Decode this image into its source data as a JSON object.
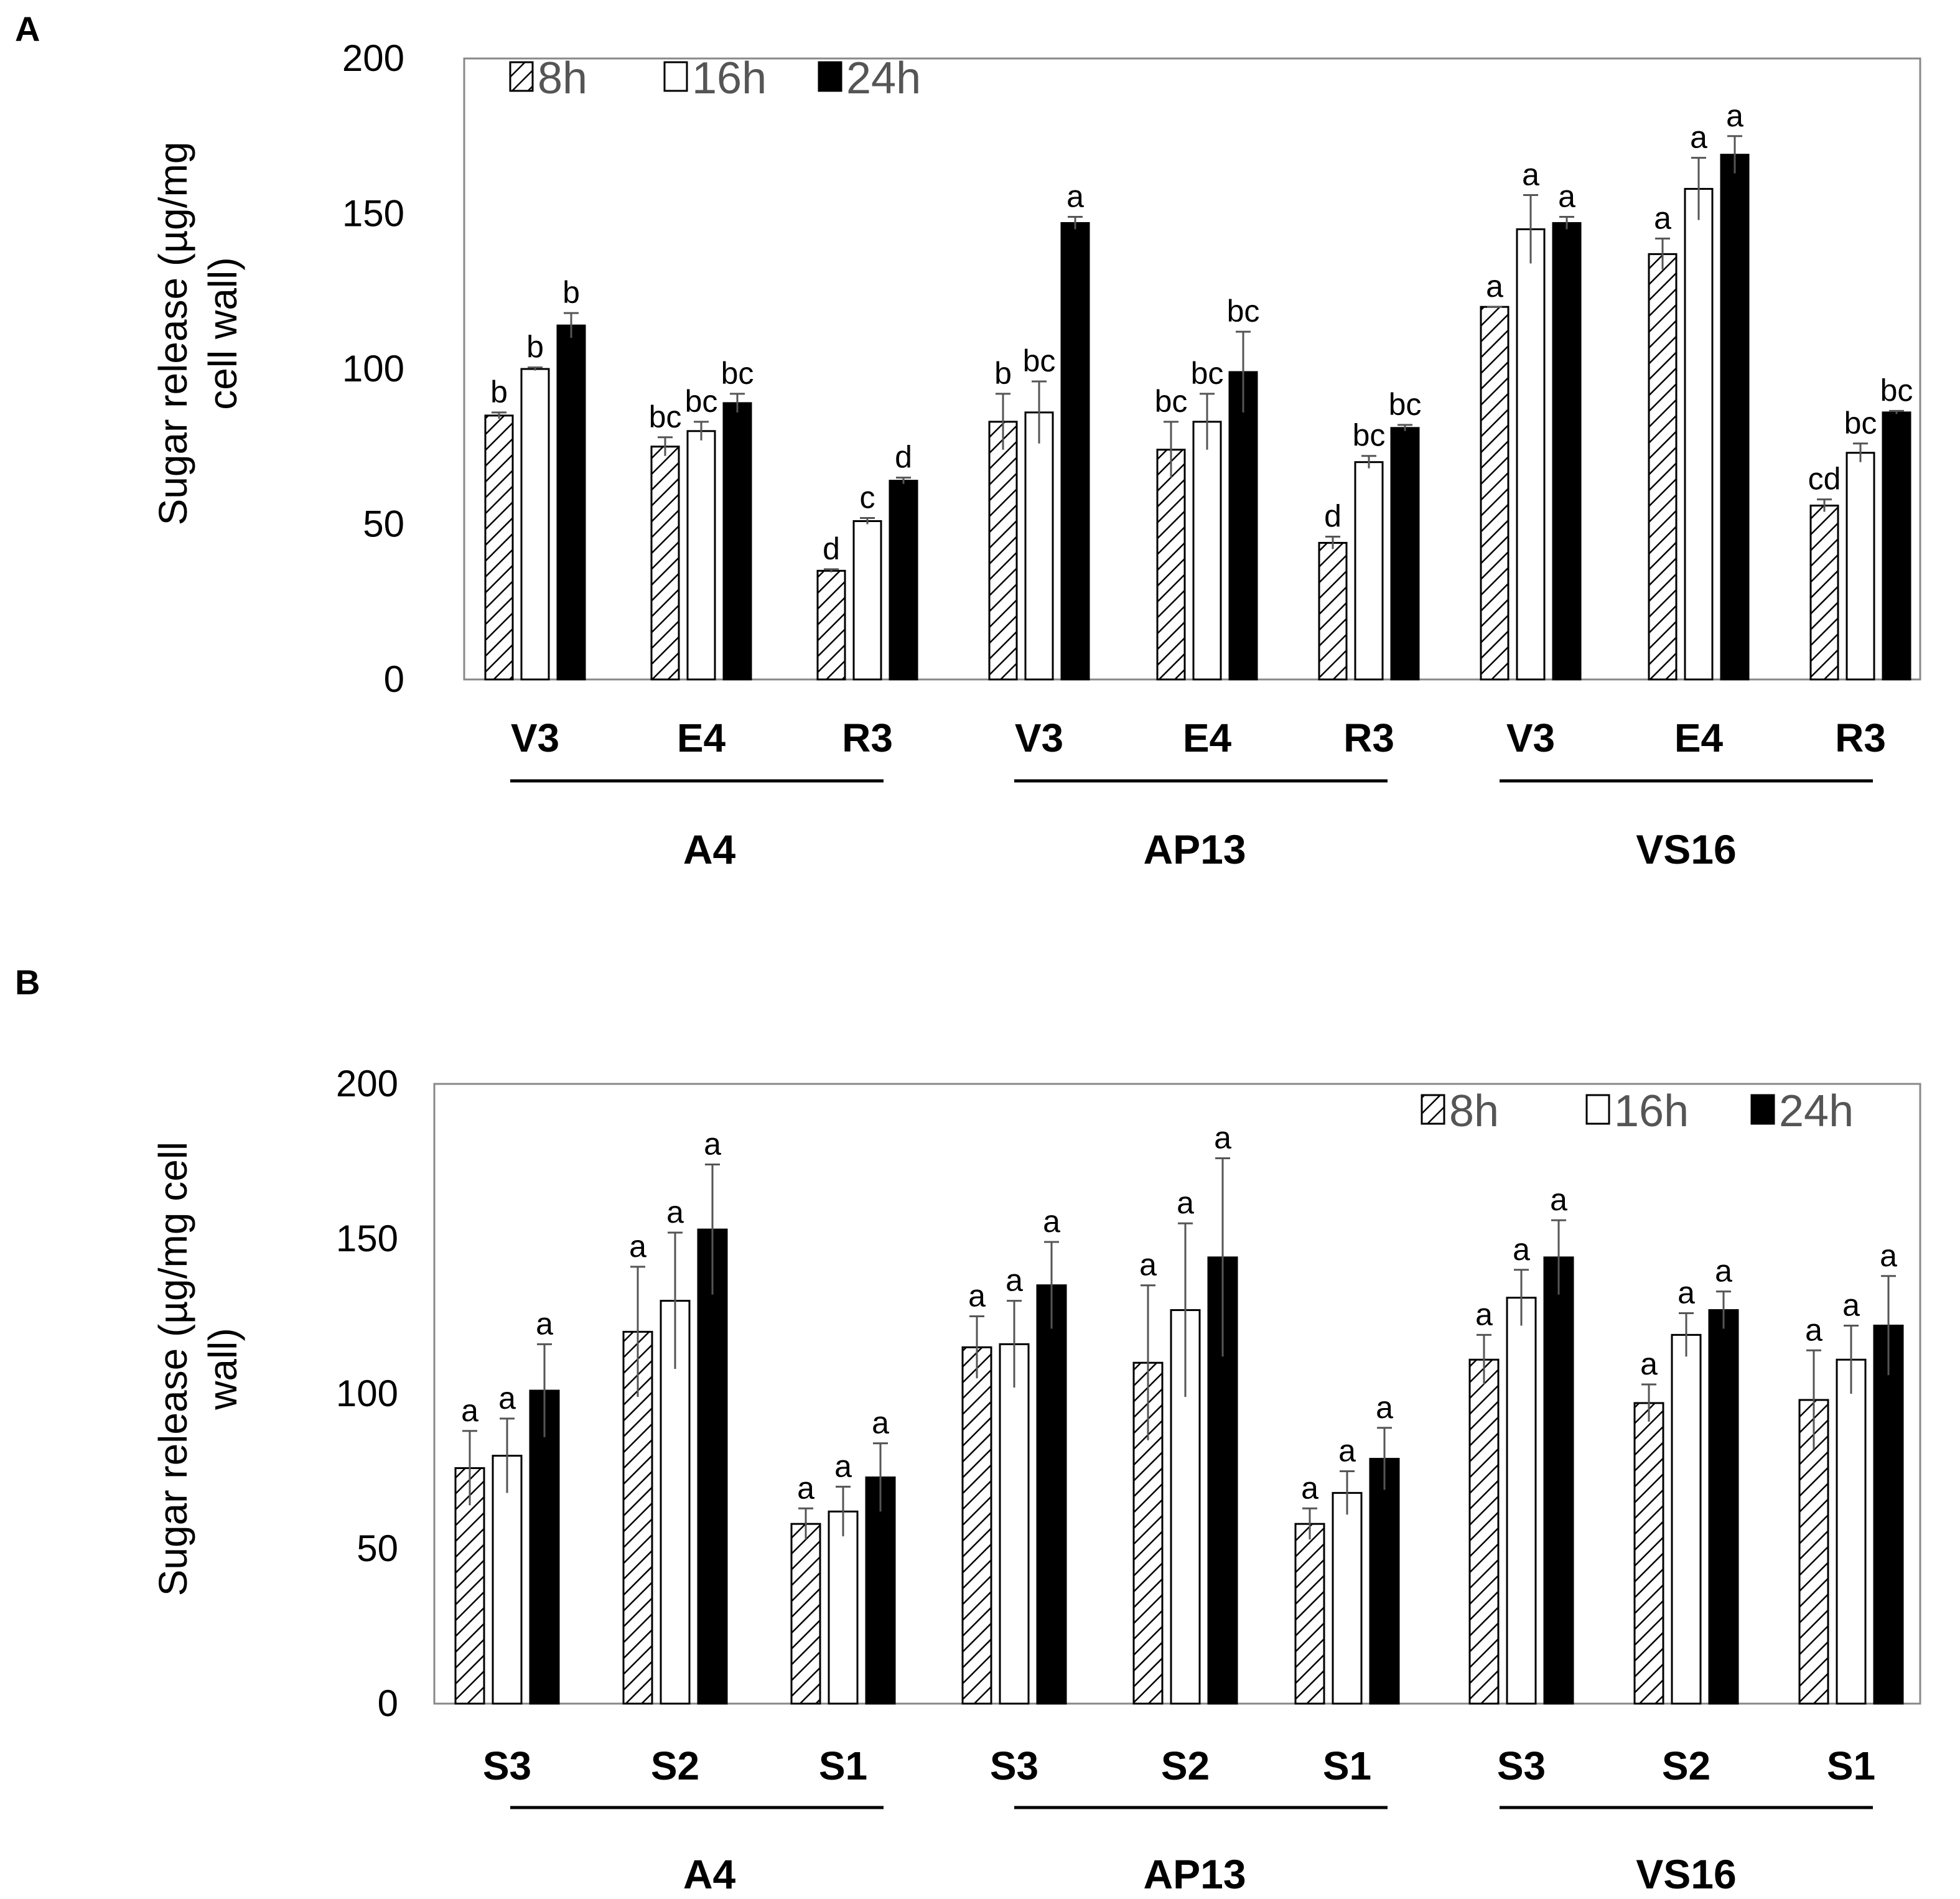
{
  "figure": {
    "panels": [
      "A",
      "B"
    ],
    "series_names": [
      "8h",
      "16h",
      "24h"
    ],
    "colors": {
      "axis": "#000000",
      "bar_24h": "#000000",
      "bar_16h": "#ffffff",
      "hatch": "#000000",
      "legend_text": "#555555"
    }
  },
  "chart_data": [
    {
      "type": "bar",
      "panel": "A",
      "title": "",
      "ylabel": "Sugar release (µg/mg cell wall)",
      "ylabel_lines": [
        "Sugar release (µg/mg",
        "cell wall)"
      ],
      "ylim": [
        0,
        200
      ],
      "yticks": [
        0,
        50,
        100,
        150,
        200
      ],
      "legend_position": "top-left",
      "categories": [
        "V3",
        "E4",
        "R3",
        "V3",
        "E4",
        "R3",
        "V3",
        "E4",
        "R3"
      ],
      "groups": [
        {
          "label": "A4",
          "categories": [
            0,
            1,
            2
          ]
        },
        {
          "label": "AP13",
          "categories": [
            3,
            4,
            5
          ]
        },
        {
          "label": "VS16",
          "categories": [
            6,
            7,
            8
          ]
        }
      ],
      "series": [
        {
          "name": "8h",
          "pattern": "hatched",
          "values": [
            85,
            75,
            35,
            83,
            74,
            44,
            120,
            137,
            56
          ],
          "errors": [
            1,
            3,
            0.5,
            9,
            9,
            2,
            0,
            5,
            2
          ],
          "letters": [
            "b",
            "bc",
            "d",
            "b",
            "bc",
            "d",
            "a",
            "a",
            "cd"
          ]
        },
        {
          "name": "16h",
          "pattern": "white",
          "values": [
            100,
            80,
            51,
            86,
            83,
            70,
            145,
            158,
            73
          ],
          "errors": [
            0.5,
            3,
            1,
            10,
            9,
            2,
            11,
            10,
            3
          ],
          "letters": [
            "b",
            "bc",
            "c",
            "bc",
            "bc",
            "bc",
            "a",
            "a",
            "bc"
          ]
        },
        {
          "name": "24h",
          "pattern": "black",
          "values": [
            114,
            89,
            64,
            147,
            99,
            81,
            147,
            169,
            86
          ],
          "errors": [
            4,
            3,
            1,
            2,
            13,
            1,
            2,
            6,
            0.5
          ],
          "letters": [
            "b",
            "bc",
            "d",
            "a",
            "bc",
            "bc",
            "a",
            "a",
            "bc"
          ]
        }
      ]
    },
    {
      "type": "bar",
      "panel": "B",
      "title": "",
      "ylabel": "Sugar release (µg/mg cell wall)",
      "ylabel_lines": [
        "Sugar release (µg/mg cell",
        "wall)"
      ],
      "ylim": [
        0,
        200
      ],
      "yticks": [
        0,
        50,
        100,
        150,
        200
      ],
      "legend_position": "top-right",
      "categories": [
        "S3",
        "S2",
        "S1",
        "S3",
        "S2",
        "S1",
        "S3",
        "S2",
        "S1"
      ],
      "groups": [
        {
          "label": "A4",
          "categories": [
            0,
            1,
            2
          ]
        },
        {
          "label": "AP13",
          "categories": [
            3,
            4,
            5
          ]
        },
        {
          "label": "VS16",
          "categories": [
            6,
            7,
            8
          ]
        }
      ],
      "series": [
        {
          "name": "8h",
          "pattern": "hatched",
          "values": [
            76,
            120,
            58,
            115,
            110,
            58,
            111,
            97,
            98
          ],
          "errors": [
            12,
            21,
            5,
            10,
            25,
            5,
            8,
            6,
            16
          ],
          "letters": [
            "a",
            "a",
            "a",
            "a",
            "a",
            "a",
            "a",
            "a",
            "a"
          ]
        },
        {
          "name": "16h",
          "pattern": "white",
          "values": [
            80,
            130,
            62,
            116,
            127,
            68,
            131,
            119,
            111
          ],
          "errors": [
            12,
            22,
            8,
            14,
            28,
            7,
            9,
            7,
            11
          ],
          "letters": [
            "a",
            "a",
            "a",
            "a",
            "a",
            "a",
            "a",
            "a",
            "a"
          ]
        },
        {
          "name": "24h",
          "pattern": "black",
          "values": [
            101,
            153,
            73,
            135,
            144,
            79,
            144,
            127,
            122
          ],
          "errors": [
            15,
            21,
            11,
            14,
            32,
            10,
            12,
            6,
            16
          ],
          "letters": [
            "a",
            "a",
            "a",
            "a",
            "a",
            "a",
            "a",
            "a",
            "a"
          ]
        }
      ]
    }
  ]
}
